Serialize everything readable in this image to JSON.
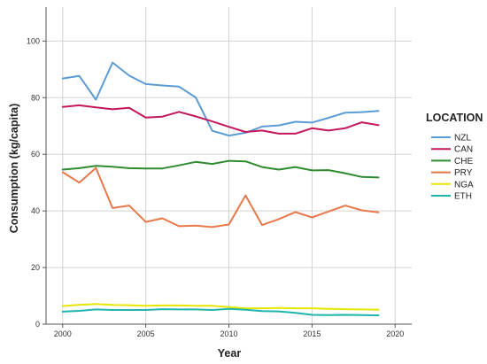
{
  "chart_data": {
    "type": "line",
    "title": "",
    "xlabel": "Year",
    "ylabel": "Consumption (kg/capita)",
    "xlim": [
      1999,
      2021
    ],
    "ylim": [
      0,
      112
    ],
    "x_ticks": [
      "2000",
      "2005",
      "2010",
      "2015",
      "2020"
    ],
    "x_tick_values": [
      2000,
      2005,
      2010,
      2015,
      2020
    ],
    "y_ticks": [
      "0",
      "20",
      "40",
      "60",
      "80",
      "100"
    ],
    "y_tick_values": [
      0,
      20,
      40,
      60,
      80,
      100
    ],
    "grid": true,
    "legend_title": "LOCATION",
    "legend_position": "right",
    "x": [
      2000,
      2001,
      2002,
      2003,
      2004,
      2005,
      2006,
      2007,
      2008,
      2009,
      2010,
      2011,
      2012,
      2013,
      2014,
      2015,
      2016,
      2017,
      2018,
      2019
    ],
    "series": [
      {
        "name": "NZL",
        "color": "#5b9bd5",
        "values": [
          86.8,
          87.7,
          79.3,
          92.4,
          87.8,
          84.8,
          84.3,
          83.9,
          80.1,
          68.3,
          66.6,
          67.6,
          69.8,
          70.2,
          71.5,
          71.2,
          72.9,
          74.7,
          74.9,
          75.3
        ]
      },
      {
        "name": "CAN",
        "color": "#c2185b",
        "values": [
          76.7,
          77.3,
          76.6,
          75.9,
          76.4,
          73.0,
          73.3,
          75.0,
          73.4,
          71.6,
          69.7,
          67.9,
          68.4,
          67.3,
          67.3,
          69.2,
          68.4,
          69.2,
          71.3,
          70.3
        ]
      },
      {
        "name": "CHE",
        "color": "#2e8b2e",
        "values": [
          54.6,
          55.1,
          55.9,
          55.6,
          55.1,
          55.0,
          55.0,
          56.1,
          57.3,
          56.6,
          57.7,
          57.5,
          55.5,
          54.6,
          55.5,
          54.3,
          54.4,
          53.3,
          52.0,
          51.8
        ]
      },
      {
        "name": "PRY",
        "color": "#e8784a",
        "values": [
          53.7,
          50.0,
          55.2,
          41.0,
          41.9,
          36.1,
          37.4,
          34.6,
          34.8,
          34.3,
          35.2,
          45.5,
          35.0,
          37.1,
          39.6,
          37.7,
          39.8,
          41.9,
          40.2,
          39.5
        ]
      },
      {
        "name": "NGA",
        "color": "#e6e600",
        "values": [
          6.4,
          6.8,
          7.1,
          6.8,
          6.7,
          6.5,
          6.6,
          6.6,
          6.5,
          6.5,
          6.0,
          5.6,
          5.6,
          5.7,
          5.6,
          5.6,
          5.4,
          5.3,
          5.2,
          5.1
        ]
      },
      {
        "name": "ETH",
        "color": "#1fb5ad",
        "values": [
          4.4,
          4.7,
          5.2,
          5.0,
          5.0,
          5.0,
          5.3,
          5.2,
          5.2,
          5.0,
          5.4,
          5.1,
          4.6,
          4.5,
          4.0,
          3.3,
          3.2,
          3.3,
          3.2,
          3.1
        ]
      }
    ]
  }
}
